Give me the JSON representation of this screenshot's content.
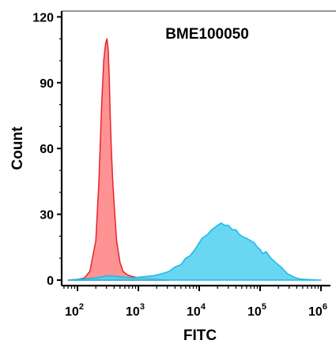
{
  "chart_data": {
    "type": "area",
    "title": "BME100050",
    "xlabel": "FITC",
    "ylabel": "Count",
    "x_scale": "log",
    "xlim": [
      70,
      1000000
    ],
    "ylim": [
      -4,
      130
    ],
    "grid": false,
    "y_ticks": [
      {
        "value": 0,
        "label": "0"
      },
      {
        "value": 30,
        "label": "30"
      },
      {
        "value": 60,
        "label": "60"
      },
      {
        "value": 90,
        "label": "90"
      },
      {
        "value": 120,
        "label": "120"
      }
    ],
    "x_ticks": [
      {
        "value": 100,
        "base": "10",
        "exp": "2"
      },
      {
        "value": 1000,
        "base": "10",
        "exp": "3"
      },
      {
        "value": 10000,
        "base": "10",
        "exp": "4"
      },
      {
        "value": 100000,
        "base": "10",
        "exp": "5"
      },
      {
        "value": 1000000,
        "base": "10",
        "exp": "6"
      }
    ],
    "series": [
      {
        "fill": "#ff8080",
        "stroke": "#e8232b",
        "opacity": 0.85,
        "x": [
          70,
          100,
          130,
          160,
          200,
          225,
          250,
          270,
          290,
          305,
          320,
          333,
          345,
          360,
          380,
          410,
          440,
          500,
          560,
          650,
          750,
          900,
          1100,
          1400,
          1800,
          2300,
          3000
        ],
        "y": [
          0,
          0.3,
          1,
          4,
          18,
          45,
          80,
          100,
          108,
          110,
          105,
          92,
          75,
          60,
          45,
          30,
          18,
          8,
          4,
          2.5,
          1.8,
          1.3,
          1,
          0.7,
          0.5,
          0.3,
          0
        ]
      },
      {
        "fill": "#4fd0f0",
        "stroke": "#1ab8e8",
        "opacity": 0.85,
        "x": [
          70,
          120,
          200,
          320,
          500,
          800,
          1200,
          1800,
          2500,
          3200,
          4000,
          5000,
          6000,
          7000,
          8000,
          9000,
          10000,
          11000,
          12500,
          14000,
          16000,
          18000,
          20000,
          23000,
          26000,
          30000,
          35000,
          40000,
          45000,
          50000,
          60000,
          70000,
          80000,
          90000,
          100000,
          110000,
          125000,
          150000,
          180000,
          220000,
          280000,
          350000,
          450000,
          600000,
          800000,
          1000000
        ],
        "y": [
          0,
          0.5,
          1,
          2,
          1.5,
          1,
          1.5,
          2,
          3,
          4,
          6,
          7,
          10,
          11,
          13,
          15,
          17,
          19,
          20,
          21,
          23,
          24,
          25,
          26,
          25,
          25,
          23,
          23,
          21,
          20,
          19,
          18,
          17,
          15,
          14,
          12,
          13,
          10,
          8,
          6,
          3,
          1.5,
          0.5,
          0.3,
          0.1,
          0
        ]
      }
    ]
  }
}
